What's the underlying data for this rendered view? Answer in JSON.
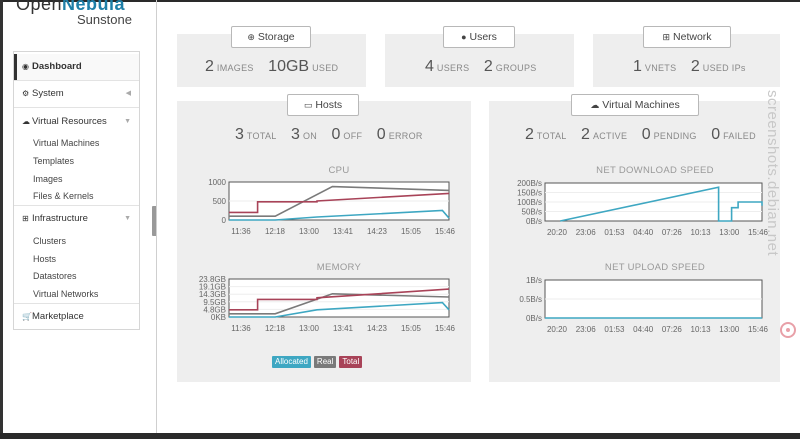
{
  "brand": {
    "name_light": "Open",
    "name_bold": "Nebula",
    "product": "Sunstone"
  },
  "sidebar": {
    "items": [
      {
        "id": "dashboard",
        "label": "Dashboard",
        "icon": "dashboard-icon",
        "active": true
      },
      {
        "id": "system",
        "label": "System",
        "icon": "gears-icon",
        "caret": "left"
      },
      {
        "id": "virtual-resources",
        "label": "Virtual Resources",
        "icon": "cloud-icon",
        "caret": "down",
        "children": [
          "Virtual Machines",
          "Templates",
          "Images",
          "Files & Kernels"
        ]
      },
      {
        "id": "infrastructure",
        "label": "Infrastructure",
        "icon": "sitemap-icon",
        "caret": "down",
        "children": [
          "Clusters",
          "Hosts",
          "Datastores",
          "Virtual Networks"
        ]
      },
      {
        "id": "marketplace",
        "label": "Marketplace",
        "icon": "cart-icon"
      }
    ]
  },
  "storage": {
    "title": "Storage",
    "icon": "storage-icon",
    "stats": [
      {
        "value": "2",
        "label": "IMAGES"
      },
      {
        "value": "10GB",
        "label": "USED"
      }
    ]
  },
  "users": {
    "title": "Users",
    "icon": "user-icon",
    "stats": [
      {
        "value": "4",
        "label": "USERS"
      },
      {
        "value": "2",
        "label": "GROUPS"
      }
    ]
  },
  "network": {
    "title": "Network",
    "icon": "sitemap-icon",
    "stats": [
      {
        "value": "1",
        "label": "VNETS"
      },
      {
        "value": "2",
        "label": "USED IPs"
      }
    ]
  },
  "hosts": {
    "title": "Hosts",
    "icon": "hdd-icon",
    "stats": [
      {
        "value": "3",
        "label": "TOTAL"
      },
      {
        "value": "3",
        "label": "ON"
      },
      {
        "value": "0",
        "label": "OFF"
      },
      {
        "value": "0",
        "label": "ERROR"
      }
    ]
  },
  "vms": {
    "title": "Virtual Machines",
    "icon": "cloud-icon",
    "stats": [
      {
        "value": "2",
        "label": "TOTAL"
      },
      {
        "value": "2",
        "label": "ACTIVE"
      },
      {
        "value": "0",
        "label": "PENDING"
      },
      {
        "value": "0",
        "label": "FAILED"
      }
    ]
  },
  "colors": {
    "allocated": "#3ea7c2",
    "real": "#7a7a7a",
    "total": "#a84358"
  },
  "legend": [
    "Allocated",
    "Real",
    "Total"
  ],
  "chart_data": [
    {
      "id": "cpu",
      "type": "line",
      "title": "CPU",
      "x_ticks": [
        "11:36",
        "12:18",
        "13:00",
        "13:41",
        "14:23",
        "15:05",
        "15:46"
      ],
      "y_ticks": [
        "1000",
        "500",
        "0"
      ],
      "ylim": [
        0,
        1000
      ],
      "series": [
        {
          "name": "Allocated",
          "points": [
            [
              0,
              0
            ],
            [
              0.21,
              0
            ],
            [
              0.4,
              80
            ],
            [
              0.97,
              250
            ],
            [
              1,
              50
            ]
          ]
        },
        {
          "name": "Real",
          "points": [
            [
              0,
              100
            ],
            [
              0.21,
              100
            ],
            [
              0.47,
              880
            ],
            [
              1,
              780
            ]
          ]
        },
        {
          "name": "Total",
          "points": [
            [
              0,
              200
            ],
            [
              0.13,
              200
            ],
            [
              0.13,
              480
            ],
            [
              0.4,
              480
            ],
            [
              0.4,
              500
            ],
            [
              1,
              700
            ]
          ]
        }
      ]
    },
    {
      "id": "memory",
      "type": "line",
      "title": "MEMORY",
      "x_ticks": [
        "11:36",
        "12:18",
        "13:00",
        "13:41",
        "14:23",
        "15:05",
        "15:46"
      ],
      "y_ticks": [
        "23.8GB",
        "19.1GB",
        "14.3GB",
        "9.5GB",
        "4.8GB",
        "0KB"
      ],
      "ylim": [
        0,
        23.8
      ],
      "series": [
        {
          "name": "Allocated",
          "points": [
            [
              0,
              0
            ],
            [
              0.21,
              0
            ],
            [
              0.4,
              4.5
            ],
            [
              0.97,
              9
            ],
            [
              1,
              4.5
            ]
          ]
        },
        {
          "name": "Real",
          "points": [
            [
              0,
              2
            ],
            [
              0.21,
              2
            ],
            [
              0.47,
              14.5
            ],
            [
              1,
              12.5
            ]
          ]
        },
        {
          "name": "Total",
          "points": [
            [
              0,
              4.5
            ],
            [
              0.13,
              4.5
            ],
            [
              0.13,
              11
            ],
            [
              0.4,
              11
            ],
            [
              0.4,
              12
            ],
            [
              1,
              17.5
            ]
          ]
        }
      ]
    },
    {
      "id": "net-download",
      "type": "line",
      "title": "NET DOWNLOAD SPEED",
      "x_ticks": [
        "20:20",
        "23:06",
        "01:53",
        "04:40",
        "07:26",
        "10:13",
        "13:00",
        "15:46"
      ],
      "y_ticks": [
        "200B/s",
        "150B/s",
        "100B/s",
        "50B/s",
        "0B/s"
      ],
      "ylim": [
        0,
        200
      ],
      "series": [
        {
          "name": "",
          "points": [
            [
              0.07,
              0
            ],
            [
              0.8,
              178
            ],
            [
              0.8,
              0
            ],
            [
              0.86,
              0
            ],
            [
              0.86,
              70
            ],
            [
              0.89,
              70
            ],
            [
              0.89,
              100
            ],
            [
              1,
              100
            ],
            [
              1,
              80
            ]
          ]
        }
      ]
    },
    {
      "id": "net-upload",
      "type": "line",
      "title": "NET UPLOAD SPEED",
      "x_ticks": [
        "20:20",
        "23:06",
        "01:53",
        "04:40",
        "07:26",
        "10:13",
        "13:00",
        "15:46"
      ],
      "y_ticks": [
        "1B/s",
        "0.5B/s",
        "0B/s"
      ],
      "ylim": [
        0,
        1
      ],
      "series": [
        {
          "name": "",
          "points": [
            [
              0,
              0
            ],
            [
              1,
              0
            ]
          ]
        }
      ]
    }
  ],
  "watermark": "screenshots.debian.net"
}
